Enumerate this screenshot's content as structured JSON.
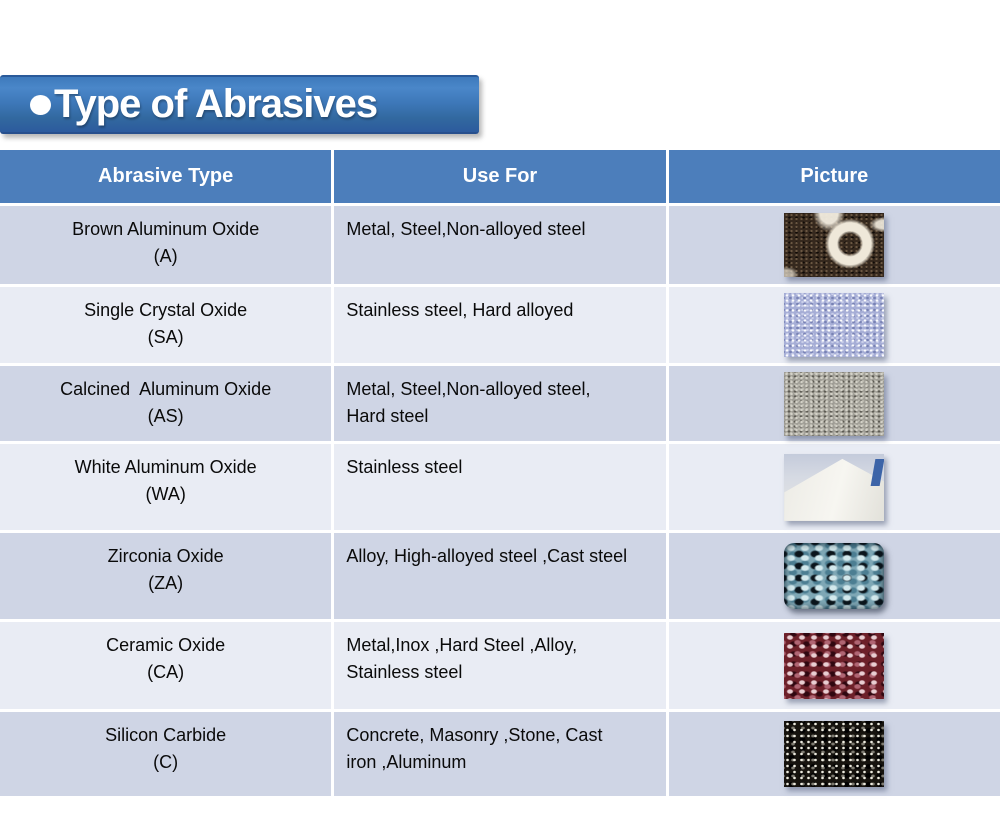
{
  "title": {
    "text": "Type of Abrasives",
    "bullet_icon": "filled-circle-bullet"
  },
  "colors": {
    "banner_blue_top": "#4a87c9",
    "banner_blue_bottom": "#2c5b9e",
    "header_bg": "#4c7ebb",
    "header_text": "#ffffff",
    "row_odd_bg": "#cfd5e5",
    "row_even_bg": "#e9ecf4",
    "body_text": "#0a0a0a"
  },
  "table": {
    "headers": [
      "Abrasive Type",
      "Use For",
      "Picture"
    ],
    "rows": [
      {
        "name": "Brown Aluminum Oxide",
        "code": "(A)",
        "use_for": "Metal, Steel,Non-alloyed steel",
        "picture": "brown-aluminum-oxide-grain-photo"
      },
      {
        "name": "Single Crystal Oxide",
        "code": "(SA)",
        "use_for": "Stainless steel, Hard alloyed",
        "picture": "single-crystal-oxide-grain-photo"
      },
      {
        "name": "Calcined  Aluminum Oxide",
        "code": "(AS)",
        "use_for": "Metal, Steel,Non-alloyed steel,\nHard steel",
        "picture": "calcined-aluminum-oxide-grain-photo"
      },
      {
        "name": "White Aluminum Oxide",
        "code": "(WA)",
        "use_for": "Stainless steel",
        "picture": "white-aluminum-oxide-powder-photo"
      },
      {
        "name": "Zirconia Oxide",
        "code": "(ZA)",
        "use_for": "Alloy, High-alloyed steel ,Cast steel",
        "picture": "zirconia-oxide-grain-photo"
      },
      {
        "name": "Ceramic Oxide",
        "code": "(CA)",
        "use_for": "Metal,Inox ,Hard Steel ,Alloy,\nStainless steel",
        "picture": "ceramic-oxide-grain-photo"
      },
      {
        "name": "Silicon Carbide",
        "code": "(C)",
        "use_for": "Concrete, Masonry ,Stone, Cast\niron ,Aluminum",
        "picture": "silicon-carbide-grain-photo"
      }
    ]
  }
}
